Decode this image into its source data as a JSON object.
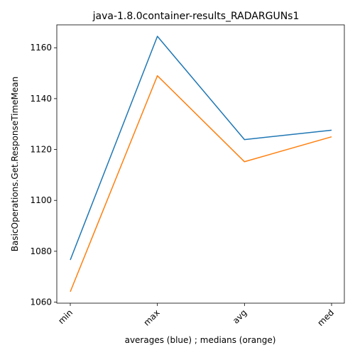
{
  "chart_data": {
    "type": "line",
    "title": "java-1.8.0container-results_RADARGUNs1",
    "xlabel": "averages (blue) ; medians (orange)",
    "ylabel": "BasicOperations.Get.ResponseTimeMean",
    "categories": [
      "min",
      "max",
      "avg",
      "med"
    ],
    "series": [
      {
        "color": "#1f77b4",
        "values": [
          1076.6,
          1164.5,
          1123.9,
          1127.6
        ]
      },
      {
        "color": "#ff7f0e",
        "values": [
          1064.1,
          1149.0,
          1115.2,
          1125.0
        ]
      }
    ],
    "ylim": [
      1059.6,
      1169.0
    ],
    "yticks": [
      1060,
      1080,
      1100,
      1120,
      1140,
      1160
    ],
    "grid": false,
    "legend": "none"
  }
}
